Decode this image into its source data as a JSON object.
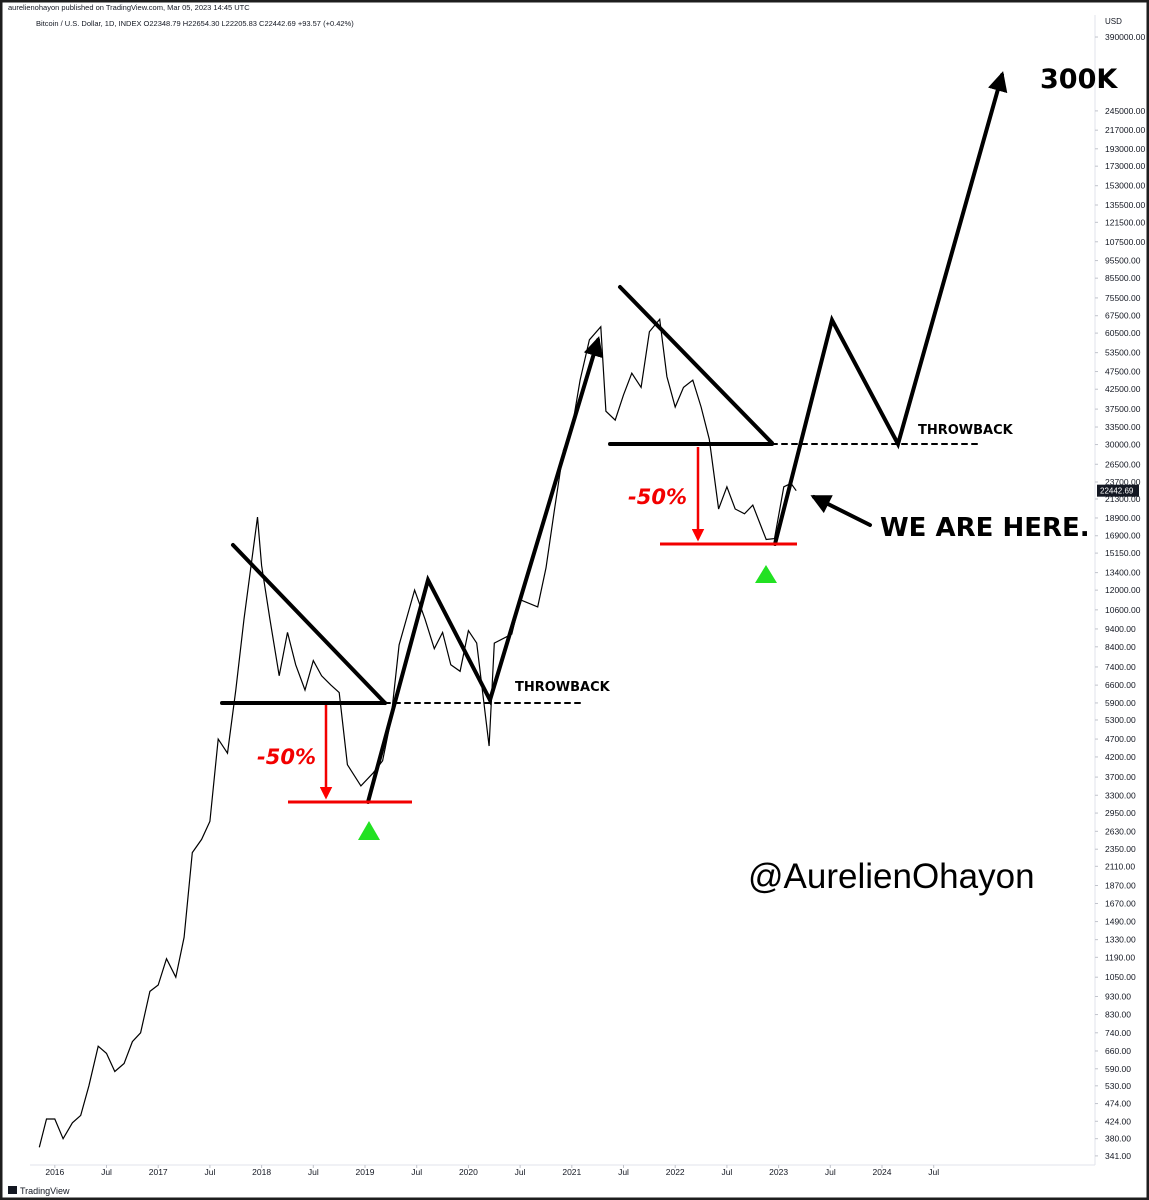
{
  "publisher": "aurelienohayon published on TradingView.com, Mar 05, 2023 14:45 UTC",
  "brand": "TradingView",
  "chart_data": {
    "type": "line",
    "title": "Bitcoin / U.S. Dollar, 1D, INDEX  O22348.79  H22654.30  L22205.83  C22442.69  +93.57 (+0.42%)",
    "y_label": "USD",
    "color": "#000000",
    "log_scale": true,
    "grid": false,
    "x": [
      2015.85,
      2015.92,
      2016.0,
      2016.08,
      2016.17,
      2016.25,
      2016.33,
      2016.42,
      2016.5,
      2016.58,
      2016.67,
      2016.75,
      2016.83,
      2016.92,
      2017.0,
      2017.08,
      2017.17,
      2017.25,
      2017.33,
      2017.42,
      2017.5,
      2017.58,
      2017.67,
      2017.75,
      2017.83,
      2017.96,
      2018.0,
      2018.08,
      2018.17,
      2018.25,
      2018.33,
      2018.42,
      2018.5,
      2018.58,
      2018.67,
      2018.75,
      2018.83,
      2018.96,
      2019.08,
      2019.17,
      2019.25,
      2019.33,
      2019.48,
      2019.58,
      2019.67,
      2019.75,
      2019.83,
      2019.92,
      2020.0,
      2020.08,
      2020.2,
      2020.25,
      2020.42,
      2020.5,
      2020.67,
      2020.75,
      2020.83,
      2020.92,
      2021.0,
      2021.08,
      2021.17,
      2021.28,
      2021.33,
      2021.42,
      2021.5,
      2021.58,
      2021.67,
      2021.75,
      2021.85,
      2021.92,
      2022.0,
      2022.08,
      2022.17,
      2022.25,
      2022.33,
      2022.42,
      2022.5,
      2022.58,
      2022.67,
      2022.75,
      2022.88,
      2022.96,
      2023.05,
      2023.12,
      2023.17
    ],
    "values": [
      360,
      430,
      430,
      380,
      420,
      440,
      530,
      680,
      650,
      580,
      610,
      700,
      740,
      960,
      1000,
      1180,
      1050,
      1350,
      2300,
      2500,
      2800,
      4700,
      4300,
      6400,
      10000,
      19000,
      14000,
      10000,
      7000,
      9200,
      7500,
      6400,
      7700,
      7000,
      6600,
      6300,
      4000,
      3500,
      3800,
      4100,
      5300,
      8500,
      12000,
      10000,
      8300,
      9200,
      7500,
      7200,
      9300,
      8600,
      4500,
      8600,
      9100,
      11300,
      10800,
      13800,
      19700,
      29000,
      33000,
      45000,
      58000,
      63000,
      37000,
      35000,
      41000,
      47000,
      43000,
      61000,
      66000,
      46000,
      38000,
      43000,
      45000,
      38000,
      31000,
      20000,
      23000,
      20000,
      19400,
      20500,
      16500,
      16600,
      23000,
      23500,
      22442.69
    ],
    "xlim": [
      2015.76,
      2026.06
    ],
    "xticks": [
      2016,
      {
        "value": 2016.5,
        "label": "Jul"
      },
      2017,
      {
        "value": 2017.5,
        "label": "Jul"
      },
      2018,
      {
        "value": 2018.5,
        "label": "Jul"
      },
      2019,
      {
        "value": 2019.5,
        "label": "Jul"
      },
      2020,
      {
        "value": 2020.5,
        "label": "Jul"
      },
      2021,
      {
        "value": 2021.5,
        "label": "Jul"
      },
      2022,
      {
        "value": 2022.5,
        "label": "Jul"
      },
      2023,
      {
        "value": 2023.5,
        "label": "Jul"
      },
      2024,
      {
        "value": 2024.5,
        "label": "Jul"
      }
    ],
    "ylim": [
      322,
      448000
    ],
    "yticks": [
      {
        "value": 390000,
        "label": "390000.00"
      },
      {
        "value": 245000,
        "label": "245000.00"
      },
      {
        "value": 217000,
        "label": "217000.00"
      },
      {
        "value": 193000,
        "label": "193000.00"
      },
      {
        "value": 173000,
        "label": "173000.00"
      },
      {
        "value": 153000,
        "label": "153000.00"
      },
      {
        "value": 135500,
        "label": "135500.00"
      },
      {
        "value": 121500,
        "label": "121500.00"
      },
      {
        "value": 107500,
        "label": "107500.00"
      },
      {
        "value": 95500,
        "label": "95500.00"
      },
      {
        "value": 85500,
        "label": "85500.00"
      },
      {
        "value": 75500,
        "label": "75500.00"
      },
      {
        "value": 67500,
        "label": "67500.00"
      },
      {
        "value": 60500,
        "label": "60500.00"
      },
      {
        "value": 53500,
        "label": "53500.00"
      },
      {
        "value": 47500,
        "label": "47500.00"
      },
      {
        "value": 42500,
        "label": "42500.00"
      },
      {
        "value": 37500,
        "label": "37500.00"
      },
      {
        "value": 33500,
        "label": "33500.00"
      },
      {
        "value": 30000,
        "label": "30000.00"
      },
      {
        "value": 26500,
        "label": "26500.00"
      },
      {
        "value": 23700,
        "label": "23700.00"
      },
      {
        "value": 21300,
        "label": "21300.00"
      },
      {
        "value": 18900,
        "label": "18900.00"
      },
      {
        "value": 16900,
        "label": "16900.00"
      },
      {
        "value": 15150,
        "label": "15150.00"
      },
      {
        "value": 13400,
        "label": "13400.00"
      },
      {
        "value": 12000,
        "label": "12000.00"
      },
      {
        "value": 10600,
        "label": "10600.00"
      },
      {
        "value": 9400,
        "label": "9400.00"
      },
      {
        "value": 8400,
        "label": "8400.00"
      },
      {
        "value": 7400,
        "label": "7400.00"
      },
      {
        "value": 6600,
        "label": "6600.00"
      },
      {
        "value": 5900,
        "label": "5900.00"
      },
      {
        "value": 5300,
        "label": "5300.00"
      },
      {
        "value": 4700,
        "label": "4700.00"
      },
      {
        "value": 4200,
        "label": "4200.00"
      },
      {
        "value": 3700,
        "label": "3700.00"
      },
      {
        "value": 3300,
        "label": "3300.00"
      },
      {
        "value": 2950,
        "label": "2950.00"
      },
      {
        "value": 2630,
        "label": "2630.00"
      },
      {
        "value": 2350,
        "label": "2350.00"
      },
      {
        "value": 2110,
        "label": "2110.00"
      },
      {
        "value": 1870,
        "label": "1870.00"
      },
      {
        "value": 1670,
        "label": "1670.00"
      },
      {
        "value": 1490,
        "label": "1490.00"
      },
      {
        "value": 1330,
        "label": "1330.00"
      },
      {
        "value": 1190,
        "label": "1190.00"
      },
      {
        "value": 1050,
        "label": "1050.00"
      },
      {
        "value": 930,
        "label": "930.00"
      },
      {
        "value": 830,
        "label": "830.00"
      },
      {
        "value": 740,
        "label": "740.00"
      },
      {
        "value": 660,
        "label": "660.00"
      },
      {
        "value": 590,
        "label": "590.00"
      },
      {
        "value": 530,
        "label": "530.00"
      },
      {
        "value": 474,
        "label": "474.00"
      },
      {
        "value": 424,
        "label": "424.00"
      },
      {
        "value": 380,
        "label": "380.00"
      },
      {
        "value": 341,
        "label": "341.00"
      }
    ],
    "annotations": [
      "300K",
      "THROWBACK",
      "-50%",
      "THROWBACK",
      "-50%",
      "WE ARE HERE.",
      "@AurelienOhayon"
    ]
  }
}
